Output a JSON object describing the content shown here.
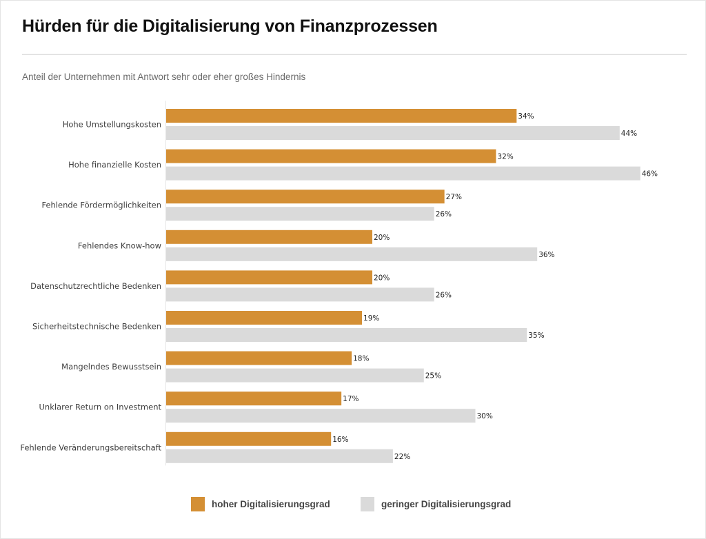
{
  "title": "Hürden für die Digitalisierung von Finanzprozessen",
  "subtitle": "Anteil der Unternehmen mit Antwort sehr oder eher großes Hindernis",
  "colors": {
    "hoch": "#d48f34",
    "gering": "#dadada"
  },
  "legend": [
    {
      "label": "hoher Digitalisierungsgrad",
      "color": "#d48f34"
    },
    {
      "label": "geringer Digitalisierungsgrad",
      "color": "#dadada"
    }
  ],
  "chart_data": {
    "type": "bar",
    "orientation": "horizontal",
    "title": "Hürden für die Digitalisierung von Finanzprozessen",
    "subtitle": "Anteil der Unternehmen mit Antwort sehr oder eher großes Hindernis",
    "xlabel": "",
    "ylabel": "",
    "unit": "%",
    "xlim": [
      0,
      50
    ],
    "grid": false,
    "legend_position": "bottom-center",
    "categories": [
      "Hohe Umstellungskosten",
      "Hohe finanzielle Kosten",
      "Fehlende Fördermöglichkeiten",
      "Fehlendes Know-how",
      "Datenschutzrechtliche Bedenken",
      "Sicherheitstechnische Bedenken",
      "Mangelndes Bewusstsein",
      "Unklarer Return on Investment",
      "Fehlende Veränderungsbereitschaft"
    ],
    "series": [
      {
        "name": "hoher Digitalisierungsgrad",
        "color": "#d48f34",
        "values": [
          34,
          32,
          27,
          20,
          20,
          19,
          18,
          17,
          16
        ]
      },
      {
        "name": "geringer Digitalisierungsgrad",
        "color": "#dadada",
        "values": [
          44,
          46,
          26,
          36,
          26,
          35,
          25,
          30,
          22
        ]
      }
    ]
  }
}
